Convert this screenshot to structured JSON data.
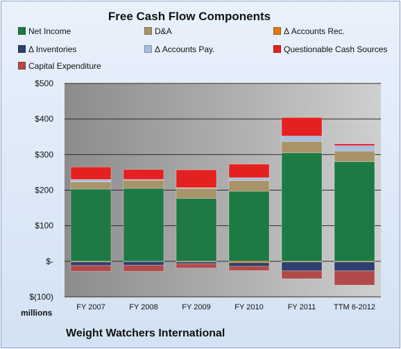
{
  "chart_data": {
    "type": "bar",
    "stacked": true,
    "title": "Free Cash Flow Components",
    "units_label": "millions",
    "footer": "Weight Watchers International",
    "categories": [
      "FY 2007",
      "FY 2008",
      "FY 2009",
      "FY 2010",
      "FY 2011",
      "TTM 6-2012"
    ],
    "ylim": [
      -100,
      500
    ],
    "yticks": [
      500,
      400,
      300,
      200,
      100,
      0,
      -100
    ],
    "ytick_labels": [
      "$500",
      "$400",
      "$300",
      "$200",
      "$100",
      "$-",
      "$(100)"
    ],
    "grid": true,
    "legend_position": "top",
    "series": [
      {
        "name": "Net Income",
        "color": "#1e7a45",
        "values": [
          203,
          205,
          177,
          197,
          305,
          280
        ]
      },
      {
        "name": "D&A",
        "color": "#a89468",
        "values": [
          20,
          23,
          28,
          30,
          32,
          30
        ]
      },
      {
        "name": "Δ Accounts Rec.",
        "color": "#e07a10",
        "values": [
          -2,
          -1,
          -2,
          -4,
          -2,
          -2
        ]
      },
      {
        "name": "Δ Inventories",
        "color": "#2c4170",
        "values": [
          -10,
          -10,
          -5,
          -10,
          -25,
          -25
        ]
      },
      {
        "name": "Δ Accounts Pay.",
        "color": "#a6bfe0",
        "values": [
          7,
          2,
          2,
          8,
          15,
          15
        ]
      },
      {
        "name": "Questionable Cash Sources",
        "color": "#e52020",
        "values": [
          35,
          28,
          50,
          38,
          52,
          5
        ]
      },
      {
        "name": "Capital Expenditure",
        "color": "#b24a4a",
        "values": [
          -16,
          -17,
          -12,
          -12,
          -22,
          -40
        ]
      }
    ]
  }
}
